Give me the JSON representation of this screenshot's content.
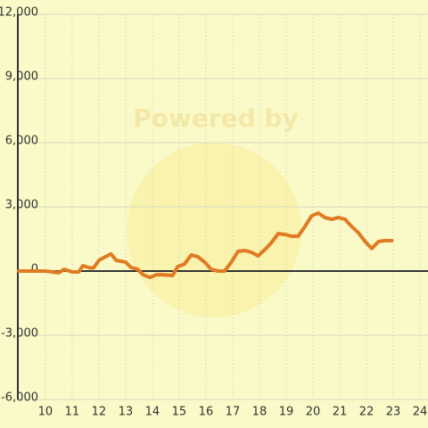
{
  "chart_data": {
    "type": "line",
    "watermark": "Powered by",
    "x": [
      9,
      10,
      10.5,
      10.7,
      11,
      11.25,
      11.4,
      11.65,
      11.8,
      12,
      12.25,
      12.45,
      12.65,
      13,
      13.2,
      13.45,
      13.65,
      13.9,
      14.15,
      14.4,
      14.75,
      14.95,
      15.2,
      15.45,
      15.7,
      15.95,
      16.2,
      16.45,
      16.7,
      16.95,
      17.2,
      17.45,
      17.7,
      17.95,
      18.2,
      18.45,
      18.7,
      18.95,
      19.2,
      19.45,
      19.7,
      19.95,
      20.2,
      20.45,
      20.7,
      20.95,
      21.2,
      21.45,
      21.7,
      21.95,
      22.2,
      22.45,
      22.7,
      22.95
    ],
    "series": [
      {
        "color": "#e07b24",
        "values": [
          0,
          0,
          -80,
          80,
          -40,
          -40,
          250,
          150,
          150,
          500,
          670,
          800,
          500,
          420,
          170,
          80,
          -170,
          -300,
          -170,
          -170,
          -210,
          210,
          330,
          750,
          670,
          420,
          80,
          0,
          0,
          420,
          920,
          960,
          880,
          710,
          1000,
          1330,
          1750,
          1710,
          1630,
          1630,
          2080,
          2580,
          2710,
          2500,
          2420,
          2500,
          2420,
          2080,
          1790,
          1380,
          1050,
          1380,
          1420,
          1420
        ]
      }
    ],
    "xlim": [
      8.97,
      24.3
    ],
    "xticks": [
      10,
      11,
      12,
      13,
      14,
      15,
      16,
      17,
      18,
      19,
      20,
      21,
      22,
      23,
      24
    ],
    "ylim": [
      -6000,
      12000
    ],
    "yticks": [
      {
        "value": -6000,
        "label": "-6,000"
      },
      {
        "value": -3000,
        "label": "-3,000"
      },
      0,
      {
        "value": 3000,
        "label": "3,000"
      },
      {
        "value": 6000,
        "label": "6,000"
      },
      {
        "value": 9000,
        "label": "9,000"
      },
      {
        "value": 12000,
        "label": "12,000"
      }
    ],
    "grid": true
  }
}
